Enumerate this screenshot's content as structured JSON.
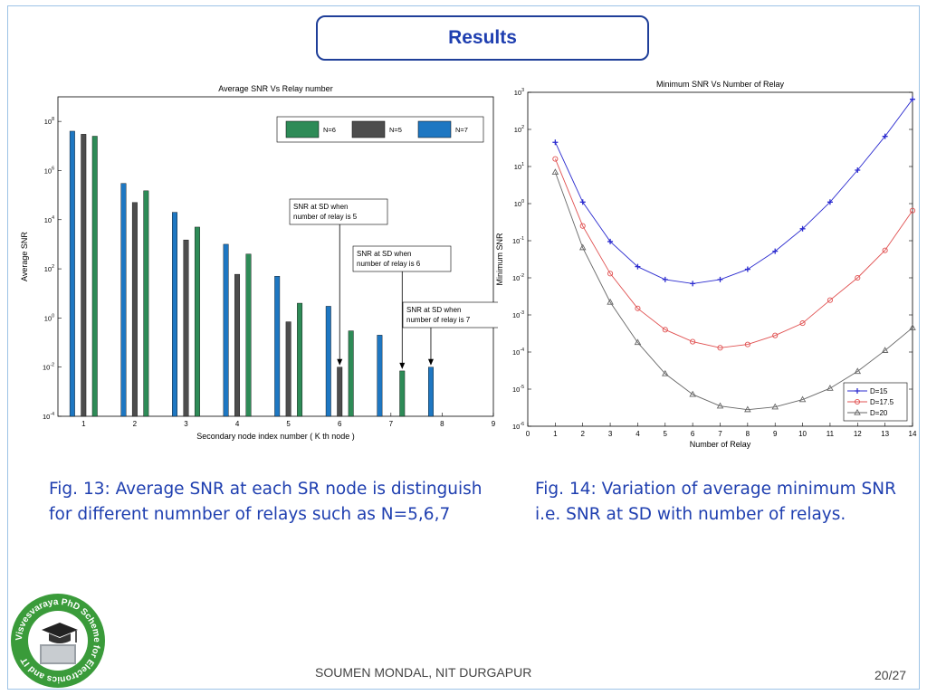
{
  "header": {
    "title": "Results"
  },
  "figures": {
    "fig13_caption": "Fig. 13: Average SNR at each SR node is distinguish for different numnber of relays such as N=5,6,7",
    "fig14_caption": "Fig. 14: Variation of average minimum SNR i.e. SNR at SD with number of relays."
  },
  "footer": {
    "author": "SOUMEN MONDAL, NIT DURGAPUR",
    "page": "20/27"
  },
  "logo": {
    "text": "Visvesvaraya PhD Scheme for Electronics and IT"
  },
  "chart_data": [
    {
      "type": "bar",
      "title": "Average SNR Vs Relay number",
      "xlabel": "Secondary node index number ( K th node )",
      "ylabel": "Average SNR",
      "yscale": "log",
      "ylim": [
        0.0001,
        1000000000
      ],
      "xlim": [
        0.5,
        9
      ],
      "x_ticks": [
        1,
        2,
        3,
        4,
        5,
        6,
        7,
        8,
        9
      ],
      "y_ticks": [
        {
          "v": 0.0001,
          "b": "10",
          "e": "-4"
        },
        {
          "v": 0.01,
          "b": "10",
          "e": "-2"
        },
        {
          "v": 1,
          "b": "10",
          "e": "0"
        },
        {
          "v": 100,
          "b": "10",
          "e": "2"
        },
        {
          "v": 10000,
          "b": "10",
          "e": "4"
        },
        {
          "v": 1000000,
          "b": "10",
          "e": "6"
        },
        {
          "v": 100000000,
          "b": "10",
          "e": "8"
        }
      ],
      "legend_position": "top-right",
      "series": [
        {
          "name": "N=7",
          "color": "#1e77c2",
          "x": [
            0.78,
            1.78,
            2.78,
            3.78,
            4.78,
            5.78,
            6.78,
            7.78
          ],
          "values": [
            40000000,
            300000,
            20000,
            1000,
            50,
            3,
            0.2,
            0.01
          ]
        },
        {
          "name": "N=5",
          "color": "#4d4d4d",
          "x": [
            1.0,
            2.0,
            3.0,
            4.0,
            5.0,
            6.0
          ],
          "values": [
            30000000,
            50000,
            1500,
            60,
            0.7,
            0.01
          ]
        },
        {
          "name": "N=6",
          "color": "#2e8b57",
          "x": [
            1.22,
            2.22,
            3.22,
            4.22,
            5.22,
            6.22,
            7.22
          ],
          "values": [
            25000000,
            150000,
            5000,
            400,
            4,
            0.3,
            0.007
          ]
        }
      ],
      "legend_order": [
        "N=6",
        "N=5",
        "N=7"
      ],
      "annotations": [
        {
          "lines": [
            "SNR at SD when",
            "number of relay is 5"
          ],
          "x": 6.0,
          "y": 0.01
        },
        {
          "lines": [
            "SNR at SD when",
            "number of relay is 6"
          ],
          "x": 7.22,
          "y": 0.007
        },
        {
          "lines": [
            "SNR at SD when",
            "number of relay is 7"
          ],
          "x": 7.78,
          "y": 0.01
        }
      ]
    },
    {
      "type": "line",
      "title": "Minimum SNR Vs Number of Relay",
      "xlabel": "Number of Relay",
      "ylabel": "Minimum SNR",
      "yscale": "log",
      "xlim": [
        0,
        14
      ],
      "ylim": [
        1e-06,
        1000
      ],
      "x_ticks": [
        0,
        1,
        2,
        3,
        4,
        5,
        6,
        7,
        8,
        9,
        10,
        11,
        12,
        13,
        14
      ],
      "y_ticks": [
        {
          "v": 1e-06,
          "b": "10",
          "e": "-6"
        },
        {
          "v": 1e-05,
          "b": "10",
          "e": "-5"
        },
        {
          "v": 0.0001,
          "b": "10",
          "e": "-4"
        },
        {
          "v": 0.001,
          "b": "10",
          "e": "-3"
        },
        {
          "v": 0.01,
          "b": "10",
          "e": "-2"
        },
        {
          "v": 0.1,
          "b": "10",
          "e": "-1"
        },
        {
          "v": 1,
          "b": "10",
          "e": "0"
        },
        {
          "v": 10,
          "b": "10",
          "e": "1"
        },
        {
          "v": 100,
          "b": "10",
          "e": "2"
        },
        {
          "v": 1000,
          "b": "10",
          "e": "3"
        }
      ],
      "legend_position": "bottom-right",
      "x": [
        1,
        2,
        3,
        4,
        5,
        6,
        7,
        8,
        9,
        10,
        11,
        12,
        13,
        14
      ],
      "series": [
        {
          "name": "D=15",
          "color": "#2b2bcf",
          "marker": "plus",
          "values": [
            45,
            1.1,
            0.095,
            0.02,
            0.009,
            0.007,
            0.009,
            0.017,
            0.052,
            0.21,
            1.1,
            8,
            65,
            650
          ]
        },
        {
          "name": "D=17.5",
          "color": "#e05050",
          "marker": "circle",
          "values": [
            16,
            0.25,
            0.013,
            0.0015,
            0.0004,
            0.00019,
            0.00013,
            0.00016,
            0.00028,
            0.0006,
            0.0025,
            0.01,
            0.055,
            0.65
          ]
        },
        {
          "name": "D=20",
          "color": "#666666",
          "marker": "triangle",
          "values": [
            7,
            0.065,
            0.0022,
            0.00018,
            2.6e-05,
            7.2e-06,
            3.5e-06,
            2.8e-06,
            3.3e-06,
            5.2e-06,
            1.05e-05,
            3e-05,
            0.00011,
            0.00045
          ]
        }
      ]
    }
  ]
}
